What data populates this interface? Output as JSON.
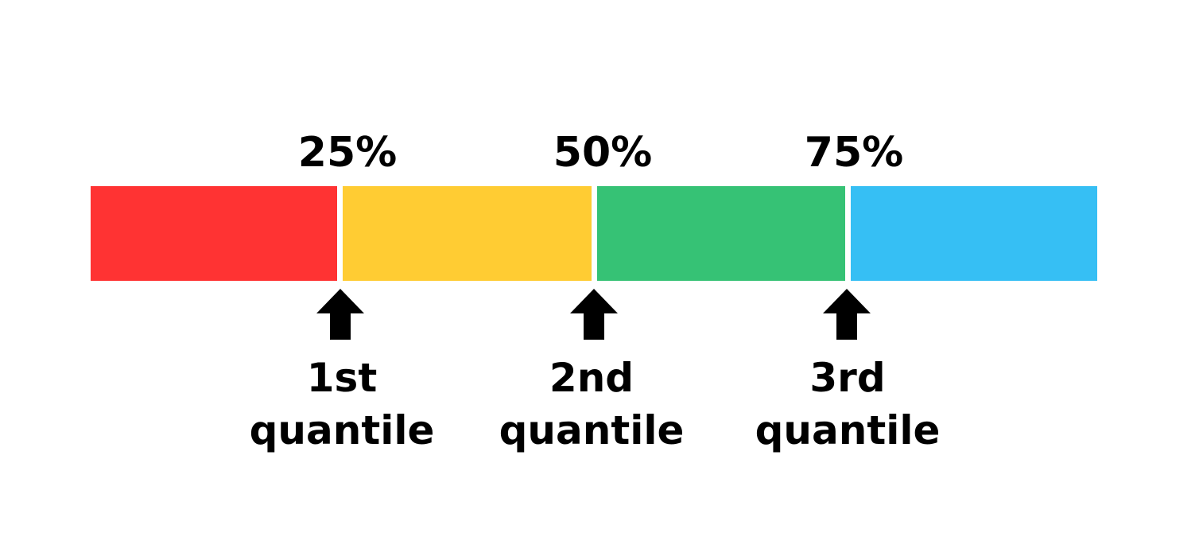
{
  "percent_labels": [
    "25%",
    "50%",
    "75%"
  ],
  "segments": [
    {
      "color": "#ff3333"
    },
    {
      "color": "#ffcc33"
    },
    {
      "color": "#36c275"
    },
    {
      "color": "#36bff4"
    }
  ],
  "quantiles": [
    {
      "ordinal": "1st",
      "word": "quantile"
    },
    {
      "ordinal": "2nd",
      "word": "quantile"
    },
    {
      "ordinal": "3rd",
      "word": "quantile"
    }
  ],
  "marker_color": "#000000"
}
